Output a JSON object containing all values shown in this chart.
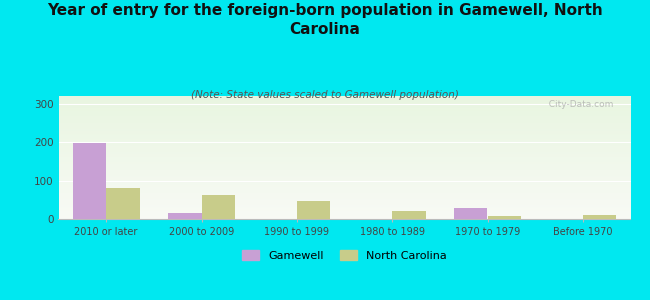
{
  "title": "Year of entry for the foreign-born population in Gamewell, North\nCarolina",
  "subtitle": "(Note: State values scaled to Gamewell population)",
  "categories": [
    "2010 or later",
    "2000 to 2009",
    "1990 to 1999",
    "1980 to 1989",
    "1970 to 1979",
    "Before 1970"
  ],
  "gamewell_values": [
    197,
    15,
    0,
    0,
    28,
    0
  ],
  "nc_values": [
    80,
    62,
    48,
    22,
    8,
    10
  ],
  "gamewell_color": "#c8a0d4",
  "nc_color": "#c8cc8a",
  "background_color": "#00e8f0",
  "grad_top": "#e8f5e0",
  "grad_bottom": "#f8faf5",
  "title_fontsize": 11,
  "subtitle_fontsize": 7.5,
  "ylim": [
    0,
    320
  ],
  "yticks": [
    0,
    100,
    200,
    300
  ],
  "bar_width": 0.35,
  "watermark": "  City-Data.com"
}
